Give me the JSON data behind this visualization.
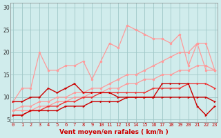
{
  "x": [
    0,
    1,
    2,
    3,
    4,
    5,
    6,
    7,
    8,
    9,
    10,
    11,
    12,
    13,
    14,
    15,
    16,
    17,
    18,
    19,
    20,
    21,
    22,
    23
  ],
  "pink_smooth1": [
    7,
    7,
    7,
    8,
    8,
    9,
    9,
    10,
    10,
    11,
    11,
    12,
    12,
    13,
    13,
    14,
    14,
    15,
    15,
    16,
    16,
    17,
    17,
    16
  ],
  "pink_smooth2": [
    7,
    8,
    8,
    9,
    9,
    10,
    10,
    11,
    11,
    12,
    12,
    13,
    14,
    15,
    15,
    16,
    17,
    18,
    19,
    20,
    20,
    22,
    22,
    16
  ],
  "pink_spiky": [
    9,
    12,
    12,
    20,
    16,
    16,
    17,
    17,
    18,
    14,
    18,
    22,
    21,
    26,
    25,
    24,
    23,
    23,
    22,
    24,
    17,
    22,
    16,
    16
  ],
  "dark_zigzag": [
    9,
    9,
    10,
    10,
    12,
    11,
    12,
    13,
    11,
    11,
    11,
    11,
    10,
    10,
    10,
    10,
    10,
    13,
    13,
    13,
    13,
    8,
    6,
    8
  ],
  "dark_smooth": [
    6,
    6,
    7,
    7,
    7,
    7,
    8,
    8,
    8,
    9,
    9,
    9,
    9,
    10,
    10,
    10,
    10,
    10,
    10,
    10,
    10,
    10,
    10,
    9
  ],
  "dark_rising": [
    6,
    6,
    7,
    7,
    8,
    8,
    9,
    9,
    10,
    10,
    11,
    11,
    11,
    11,
    11,
    11,
    12,
    12,
    12,
    12,
    13,
    13,
    13,
    12
  ],
  "pink_color1": "#ff9999",
  "pink_color2": "#ff9999",
  "pink_spiky_color": "#ff9999",
  "dark_color": "#cc0000",
  "dark_smooth_color": "#cc0000",
  "dark_rising_color": "#ee3333",
  "bg_color": "#d0ecec",
  "grid_color": "#a0c8c8",
  "xlabel": "Vent moyen/en rafales ( km/h )",
  "xlabel_color": "#cc0000",
  "ylabel_ticks": [
    5,
    10,
    15,
    20,
    25,
    30
  ],
  "xlim": [
    -0.3,
    23.3
  ],
  "ylim": [
    4.5,
    31
  ]
}
